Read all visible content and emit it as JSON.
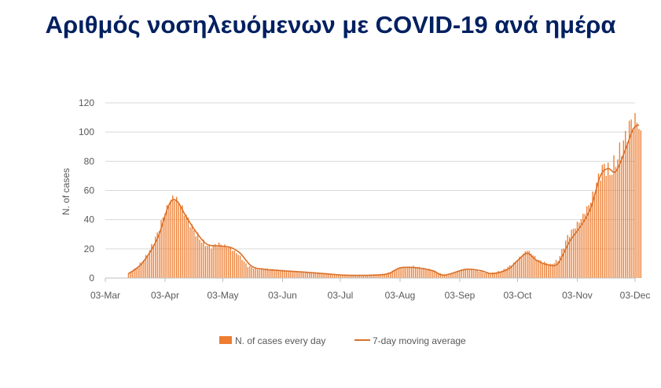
{
  "title": "Αριθμός νοσηλευόμενων με COVID-19 ανά ημέρα",
  "colors": {
    "bar": "#ED7D31",
    "line": "#D9702A",
    "title": "#002060",
    "axis_text": "#595959",
    "grid": "#D9D9D9"
  },
  "chart_data": {
    "type": "bar",
    "title": "Αριθμός νοσηλευόμενων με COVID-19 ανά ημέρα",
    "xlabel": "",
    "ylabel": "N. of cases",
    "ylim": [
      0,
      120
    ],
    "yticks": [
      0,
      20,
      40,
      60,
      80,
      100,
      120
    ],
    "xlim": [
      "2020-03-03",
      "2020-12-03"
    ],
    "xticks": [
      {
        "date": "2020-03-03",
        "label": "03-Mar"
      },
      {
        "date": "2020-04-03",
        "label": "03-Apr"
      },
      {
        "date": "2020-05-03",
        "label": "03-May"
      },
      {
        "date": "2020-06-03",
        "label": "03-Jun"
      },
      {
        "date": "2020-07-03",
        "label": "03-Jul"
      },
      {
        "date": "2020-08-03",
        "label": "03-Aug"
      },
      {
        "date": "2020-09-03",
        "label": "03-Sep"
      },
      {
        "date": "2020-10-03",
        "label": "03-Oct"
      },
      {
        "date": "2020-11-03",
        "label": "03-Nov"
      },
      {
        "date": "2020-12-03",
        "label": "03-Dec"
      }
    ],
    "grid": true,
    "legend": "bottom",
    "series": [
      {
        "name": "N. of cases every day",
        "kind": "bar",
        "anchors": [
          [
            "2020-03-15",
            3
          ],
          [
            "2020-03-20",
            8
          ],
          [
            "2020-03-25",
            16
          ],
          [
            "2020-03-30",
            30
          ],
          [
            "2020-04-03",
            45
          ],
          [
            "2020-04-07",
            55
          ],
          [
            "2020-04-10",
            52
          ],
          [
            "2020-04-14",
            42
          ],
          [
            "2020-04-18",
            32
          ],
          [
            "2020-04-22",
            25
          ],
          [
            "2020-04-26",
            21
          ],
          [
            "2020-05-01",
            23
          ],
          [
            "2020-05-06",
            21
          ],
          [
            "2020-05-11",
            16
          ],
          [
            "2020-05-16",
            8
          ],
          [
            "2020-05-21",
            6
          ],
          [
            "2020-05-28",
            6
          ],
          [
            "2020-06-05",
            5
          ],
          [
            "2020-06-15",
            4
          ],
          [
            "2020-06-25",
            3
          ],
          [
            "2020-07-05",
            2
          ],
          [
            "2020-07-15",
            2
          ],
          [
            "2020-07-25",
            2
          ],
          [
            "2020-08-03",
            7
          ],
          [
            "2020-08-10",
            8
          ],
          [
            "2020-08-18",
            6
          ],
          [
            "2020-08-24",
            3
          ],
          [
            "2020-08-28",
            2
          ],
          [
            "2020-09-05",
            6
          ],
          [
            "2020-09-12",
            5
          ],
          [
            "2020-09-18",
            3
          ],
          [
            "2020-09-25",
            5
          ],
          [
            "2020-10-01",
            10
          ],
          [
            "2020-10-08",
            19
          ],
          [
            "2020-10-14",
            12
          ],
          [
            "2020-10-20",
            9
          ],
          [
            "2020-10-24",
            12
          ],
          [
            "2020-10-29",
            28
          ],
          [
            "2020-11-05",
            40
          ],
          [
            "2020-11-10",
            52
          ],
          [
            "2020-11-14",
            68
          ],
          [
            "2020-11-17",
            76
          ],
          [
            "2020-11-20",
            71
          ],
          [
            "2020-11-24",
            82
          ],
          [
            "2020-11-28",
            95
          ],
          [
            "2020-12-01",
            106
          ],
          [
            "2020-12-04",
            107
          ],
          [
            "2020-12-06",
            97
          ]
        ]
      },
      {
        "name": "7-day moving average",
        "kind": "line",
        "anchors": [
          [
            "2020-03-15",
            3
          ],
          [
            "2020-03-22",
            10
          ],
          [
            "2020-03-30",
            27
          ],
          [
            "2020-04-05",
            50
          ],
          [
            "2020-04-09",
            53
          ],
          [
            "2020-04-14",
            42
          ],
          [
            "2020-04-20",
            30
          ],
          [
            "2020-04-25",
            23
          ],
          [
            "2020-05-01",
            22
          ],
          [
            "2020-05-07",
            21
          ],
          [
            "2020-05-12",
            17
          ],
          [
            "2020-05-18",
            8
          ],
          [
            "2020-05-25",
            6
          ],
          [
            "2020-06-03",
            5
          ],
          [
            "2020-06-15",
            4
          ],
          [
            "2020-06-25",
            3
          ],
          [
            "2020-07-05",
            2
          ],
          [
            "2020-07-20",
            2
          ],
          [
            "2020-07-28",
            3
          ],
          [
            "2020-08-03",
            7
          ],
          [
            "2020-08-12",
            7
          ],
          [
            "2020-08-20",
            5
          ],
          [
            "2020-08-26",
            2
          ],
          [
            "2020-09-06",
            6
          ],
          [
            "2020-09-14",
            5
          ],
          [
            "2020-09-20",
            3
          ],
          [
            "2020-09-28",
            6
          ],
          [
            "2020-10-03",
            12
          ],
          [
            "2020-10-08",
            17
          ],
          [
            "2020-10-13",
            12
          ],
          [
            "2020-10-19",
            9
          ],
          [
            "2020-10-24",
            10
          ],
          [
            "2020-10-30",
            25
          ],
          [
            "2020-11-05",
            36
          ],
          [
            "2020-11-10",
            48
          ],
          [
            "2020-11-15",
            70
          ],
          [
            "2020-11-19",
            75
          ],
          [
            "2020-11-23",
            73
          ],
          [
            "2020-11-28",
            88
          ],
          [
            "2020-12-02",
            102
          ],
          [
            "2020-12-05",
            105
          ]
        ]
      }
    ]
  }
}
